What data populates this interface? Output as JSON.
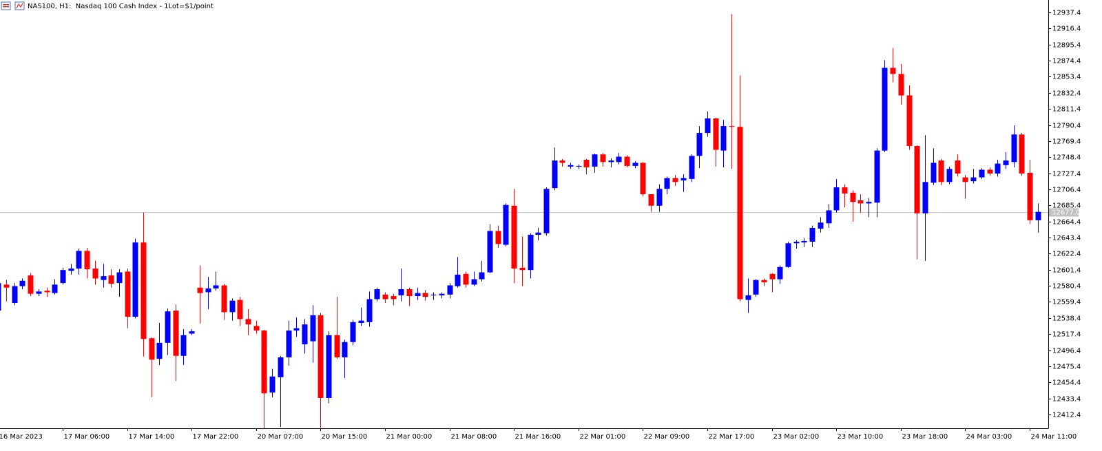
{
  "chart_data": {
    "type": "candlestick",
    "title": "NAS100, H1:  Nasdaq 100 Cash Index - 1Lot=$1/point",
    "categories": [
      "16 Mar 2023",
      null,
      null,
      null,
      null,
      null,
      null,
      null,
      "17 Mar 06:00",
      null,
      null,
      null,
      null,
      null,
      null,
      null,
      "17 Mar 14:00",
      null,
      null,
      null,
      null,
      null,
      null,
      null,
      "17 Mar 22:00",
      null,
      null,
      null,
      null,
      null,
      null,
      null,
      "20 Mar 07:00",
      null,
      null,
      null,
      null,
      null,
      null,
      null,
      "20 Mar 15:00",
      null,
      null,
      null,
      null,
      null,
      null,
      null,
      "21 Mar 00:00",
      null,
      null,
      null,
      null,
      null,
      null,
      null,
      "21 Mar 08:00",
      null,
      null,
      null,
      null,
      null,
      null,
      null,
      "21 Mar 16:00",
      null,
      null,
      null,
      null,
      null,
      null,
      null,
      "22 Mar 01:00",
      null,
      null,
      null,
      null,
      null,
      null,
      null,
      "22 Mar 09:00",
      null,
      null,
      null,
      null,
      null,
      null,
      null,
      "22 Mar 17:00",
      null,
      null,
      null,
      null,
      null,
      null,
      null,
      "23 Mar 02:00",
      null,
      null,
      null,
      null,
      null,
      null,
      null,
      "23 Mar 10:00",
      null,
      null,
      null,
      null,
      null,
      null,
      null,
      "23 Mar 18:00",
      null,
      null,
      null,
      null,
      null,
      null,
      null,
      "24 Mar 03:00",
      null,
      null,
      null,
      null,
      null,
      null,
      null,
      "24 Mar 11:00",
      null
    ],
    "open": [
      12548,
      12582,
      12558,
      12580,
      12594,
      12570,
      12574,
      12571,
      12584,
      12600,
      12603,
      12626,
      12603,
      12588,
      12594,
      12584,
      12599,
      12540,
      12637,
      12512,
      12485,
      12506,
      12548,
      12489,
      12518,
      12578,
      12572,
      12577,
      12581,
      12546,
      12562,
      12537,
      12528,
      12522,
      12441,
      12461,
      12487,
      12522,
      12504,
      12508,
      12542,
      12434,
      12516,
      12487,
      12507,
      12532,
      12533,
      12563,
      12569,
      12567,
      12568,
      12576,
      12567,
      12571,
      12568,
      12568,
      12569,
      12580,
      12596,
      12582,
      12589,
      12598,
      12652,
      12634,
      12685,
      12604,
      12601,
      12647,
      12649,
      12708,
      12744,
      12736,
      12736,
      12745,
      12736,
      12752,
      12742,
      12742,
      12749,
      12737,
      12741,
      12700,
      12685,
      12707,
      12721,
      12718,
      12720,
      12750,
      12780,
      12799,
      12757,
      12789,
      12788,
      12562,
      12569,
      12588,
      12596,
      12589,
      12605,
      12636,
      12637,
      12638,
      12655,
      12662,
      12679,
      12709,
      12702,
      12692,
      12688,
      12689,
      12757,
      12865,
      12857,
      12829,
      12763,
      12675,
      12715,
      12744,
      12716,
      12744,
      12722,
      12717,
      12722,
      12732,
      12727,
      12738,
      12742,
      12778,
      12728,
      12666
    ],
    "high": [
      12586,
      12588,
      12584,
      12590,
      12597,
      12576,
      12578,
      12589,
      12604,
      12609,
      12629,
      12630,
      12613,
      12609,
      12602,
      12602,
      12603,
      12642,
      12676,
      12513,
      12532,
      12551,
      12556,
      12524,
      12524,
      12607,
      12592,
      12599,
      12583,
      12564,
      12566,
      12550,
      12535,
      12523,
      12472,
      12489,
      12535,
      12539,
      12537,
      12555,
      12545,
      12521,
      12566,
      12510,
      12536,
      12552,
      12573,
      12578,
      12572,
      12570,
      12603,
      12578,
      12578,
      12575,
      12572,
      12572,
      12584,
      12618,
      12599,
      12599,
      12613,
      12661,
      12659,
      12688,
      12707,
      12645,
      12649,
      12656,
      12709,
      12761,
      12746,
      12741,
      12739,
      12746,
      12753,
      12754,
      12747,
      12754,
      12751,
      12743,
      12742,
      12700,
      12713,
      12723,
      12725,
      12726,
      12752,
      12789,
      12808,
      12800,
      12797,
      12935,
      12855,
      12590,
      12589,
      12590,
      12597,
      12607,
      12638,
      12640,
      12643,
      12659,
      12670,
      12687,
      12720,
      12713,
      12705,
      12700,
      12695,
      12760,
      12875,
      12891,
      12870,
      12842,
      12764,
      12777,
      12760,
      12746,
      12736,
      12752,
      12725,
      12733,
      12734,
      12735,
      12745,
      12755,
      12790,
      12780,
      12745,
      12688
    ],
    "low": [
      12546,
      12560,
      12555,
      12576,
      12567,
      12567,
      12566,
      12569,
      12582,
      12595,
      12595,
      12590,
      12582,
      12578,
      12578,
      12566,
      12525,
      12538,
      12488,
      12435,
      12477,
      12490,
      12456,
      12477,
      12516,
      12531,
      12550,
      12574,
      12536,
      12535,
      12528,
      12516,
      12518,
      12394,
      12435,
      12396,
      12476,
      12514,
      12492,
      12480,
      12395,
      12427,
      12485,
      12460,
      12503,
      12528,
      12527,
      12560,
      12558,
      12555,
      12560,
      12554,
      12562,
      12561,
      12562,
      12564,
      12564,
      12578,
      12578,
      12580,
      12586,
      12597,
      12630,
      12632,
      12584,
      12580,
      12590,
      12640,
      12646,
      12705,
      12736,
      12733,
      12733,
      12726,
      12728,
      12736,
      12735,
      12739,
      12735,
      12734,
      12697,
      12677,
      12677,
      12700,
      12711,
      12703,
      12716,
      12734,
      12775,
      12736,
      12735,
      12733,
      12560,
      12545,
      12566,
      12580,
      12572,
      12583,
      12604,
      12629,
      12631,
      12631,
      12650,
      12656,
      12676,
      12683,
      12664,
      12676,
      12670,
      12670,
      12755,
      12846,
      12817,
      12758,
      12615,
      12613,
      12712,
      12712,
      12713,
      12723,
      12694,
      12714,
      12720,
      12724,
      12723,
      12733,
      12735,
      12724,
      12661,
      12650
    ],
    "close": [
      12584,
      12578,
      12580,
      12587,
      12570,
      12573,
      12572,
      12582,
      12601,
      12603,
      12626,
      12602,
      12590,
      12593,
      12583,
      12598,
      12540,
      12637,
      12511,
      12484,
      12506,
      12547,
      12489,
      12516,
      12521,
      12571,
      12577,
      12581,
      12546,
      12561,
      12537,
      12530,
      12522,
      12440,
      12462,
      12487,
      12522,
      12525,
      12530,
      12542,
      12434,
      12516,
      12487,
      12507,
      12533,
      12535,
      12563,
      12576,
      12563,
      12563,
      12576,
      12567,
      12571,
      12566,
      12569,
      12570,
      12581,
      12595,
      12582,
      12589,
      12598,
      12652,
      12635,
      12686,
      12603,
      12601,
      12647,
      12650,
      12707,
      12744,
      12741,
      12738,
      12737,
      12735,
      12752,
      12742,
      12744,
      12749,
      12737,
      12741,
      12700,
      12685,
      12707,
      12721,
      12716,
      12721,
      12750,
      12780,
      12799,
      12758,
      12789,
      12788,
      12563,
      12568,
      12588,
      12585,
      12589,
      12605,
      12636,
      12638,
      12639,
      12656,
      12663,
      12679,
      12709,
      12701,
      12690,
      12688,
      12690,
      12757,
      12865,
      12857,
      12829,
      12763,
      12675,
      12716,
      12741,
      12716,
      12733,
      12727,
      12716,
      12722,
      12732,
      12727,
      12740,
      12744,
      12778,
      12727,
      12666,
      12677
    ],
    "up_color": "#0000ff",
    "down_color": "#ff0000",
    "ylim": [
      12394.4,
      12953.6
    ],
    "yticks": [
      12412.4,
      12433.4,
      12454.4,
      12475.4,
      12496.4,
      12517.4,
      12538.4,
      12559.4,
      12580.4,
      12601.4,
      12622.4,
      12643.4,
      12664.4,
      12685.4,
      12706.4,
      12727.4,
      12748.4,
      12769.4,
      12790.4,
      12811.4,
      12832.4,
      12853.4,
      12874.4,
      12895.4,
      12916.4,
      12937.4
    ],
    "last_price": {
      "value": 12677,
      "label": "12677.0"
    }
  }
}
